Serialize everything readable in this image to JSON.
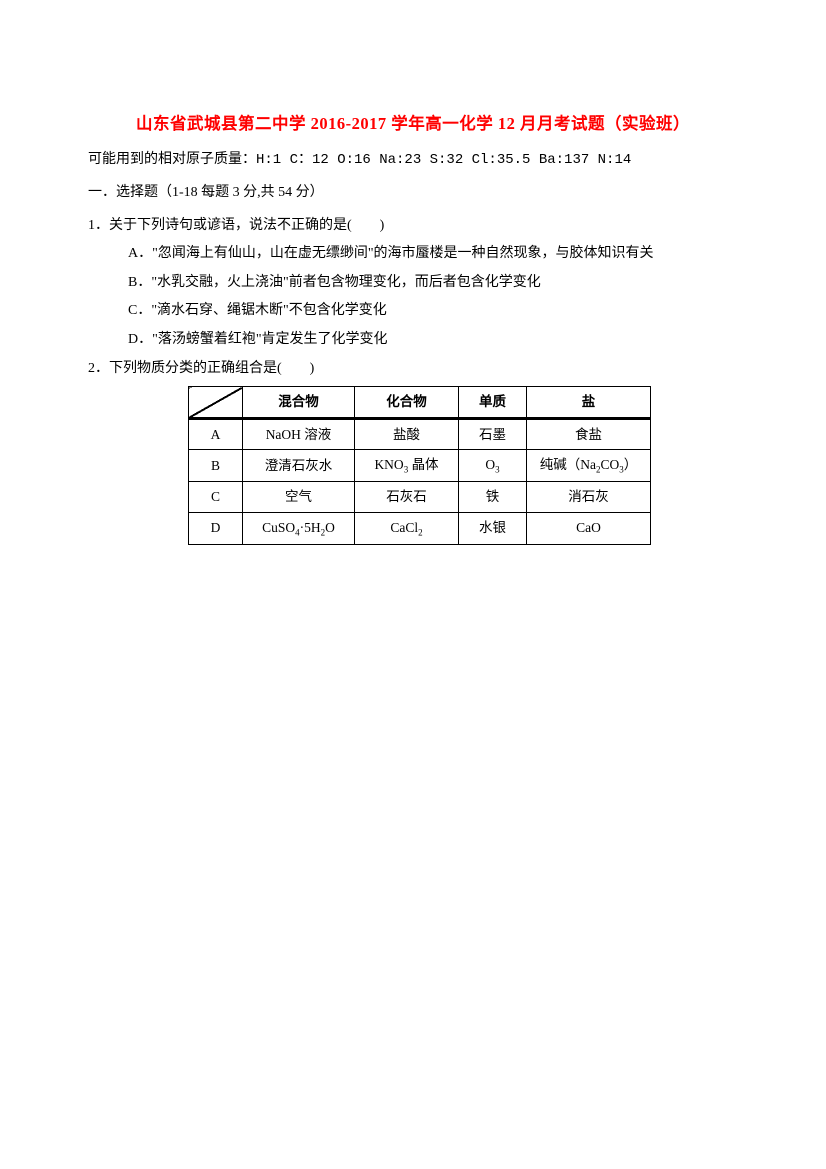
{
  "title": "山东省武城县第二中学 2016-2017 学年高一化学 12 月月考试题（实验班）",
  "atomicMass": "可能用到的相对原子质量：H:1 C：12 O:16 Na:23 S:32 Cl:35.5 Ba:137 N:14",
  "sectionHeader": "一．选择题（1-18 每题 3 分,共 54 分）",
  "q1": {
    "stem": "1．关于下列诗句或谚语，说法不正确的是(　　)",
    "optA": "A．\"忽闻海上有仙山，山在虚无缥缈间\"的海市蜃楼是一种自然现象，与胶体知识有关",
    "optB": "B．\"水乳交融，火上浇油\"前者包含物理变化，而后者包含化学变化",
    "optC": "C．\"滴水石穿、绳锯木断\"不包含化学变化",
    "optD": "D．\"落汤螃蟹着红袍\"肯定发生了化学变化"
  },
  "q2": {
    "stem": "2．下列物质分类的正确组合是(　　)"
  },
  "table": {
    "headers": {
      "blank": "",
      "mixture": "混合物",
      "compound": "化合物",
      "element": "单质",
      "salt": "盐"
    },
    "rows": [
      {
        "label": "A",
        "mixture": "NaOH 溶液",
        "compound": "盐酸",
        "element": "石墨",
        "salt": "食盐"
      },
      {
        "label": "B",
        "mixture": "澄清石灰水",
        "compound_html": "KNO<sub>3</sub> 晶体",
        "element_html": "O<sub>3</sub>",
        "salt_html": "纯碱（Na<sub>2</sub>CO<sub>3</sub>）"
      },
      {
        "label": "C",
        "mixture": "空气",
        "compound": "石灰石",
        "element": "铁",
        "salt": "消石灰"
      },
      {
        "label": "D",
        "mixture_html": "CuSO<sub>4</sub>·5H<sub>2</sub>O",
        "compound_html": "CaCl<sub>2</sub>",
        "element": "水银",
        "salt": "CaO"
      }
    ]
  }
}
